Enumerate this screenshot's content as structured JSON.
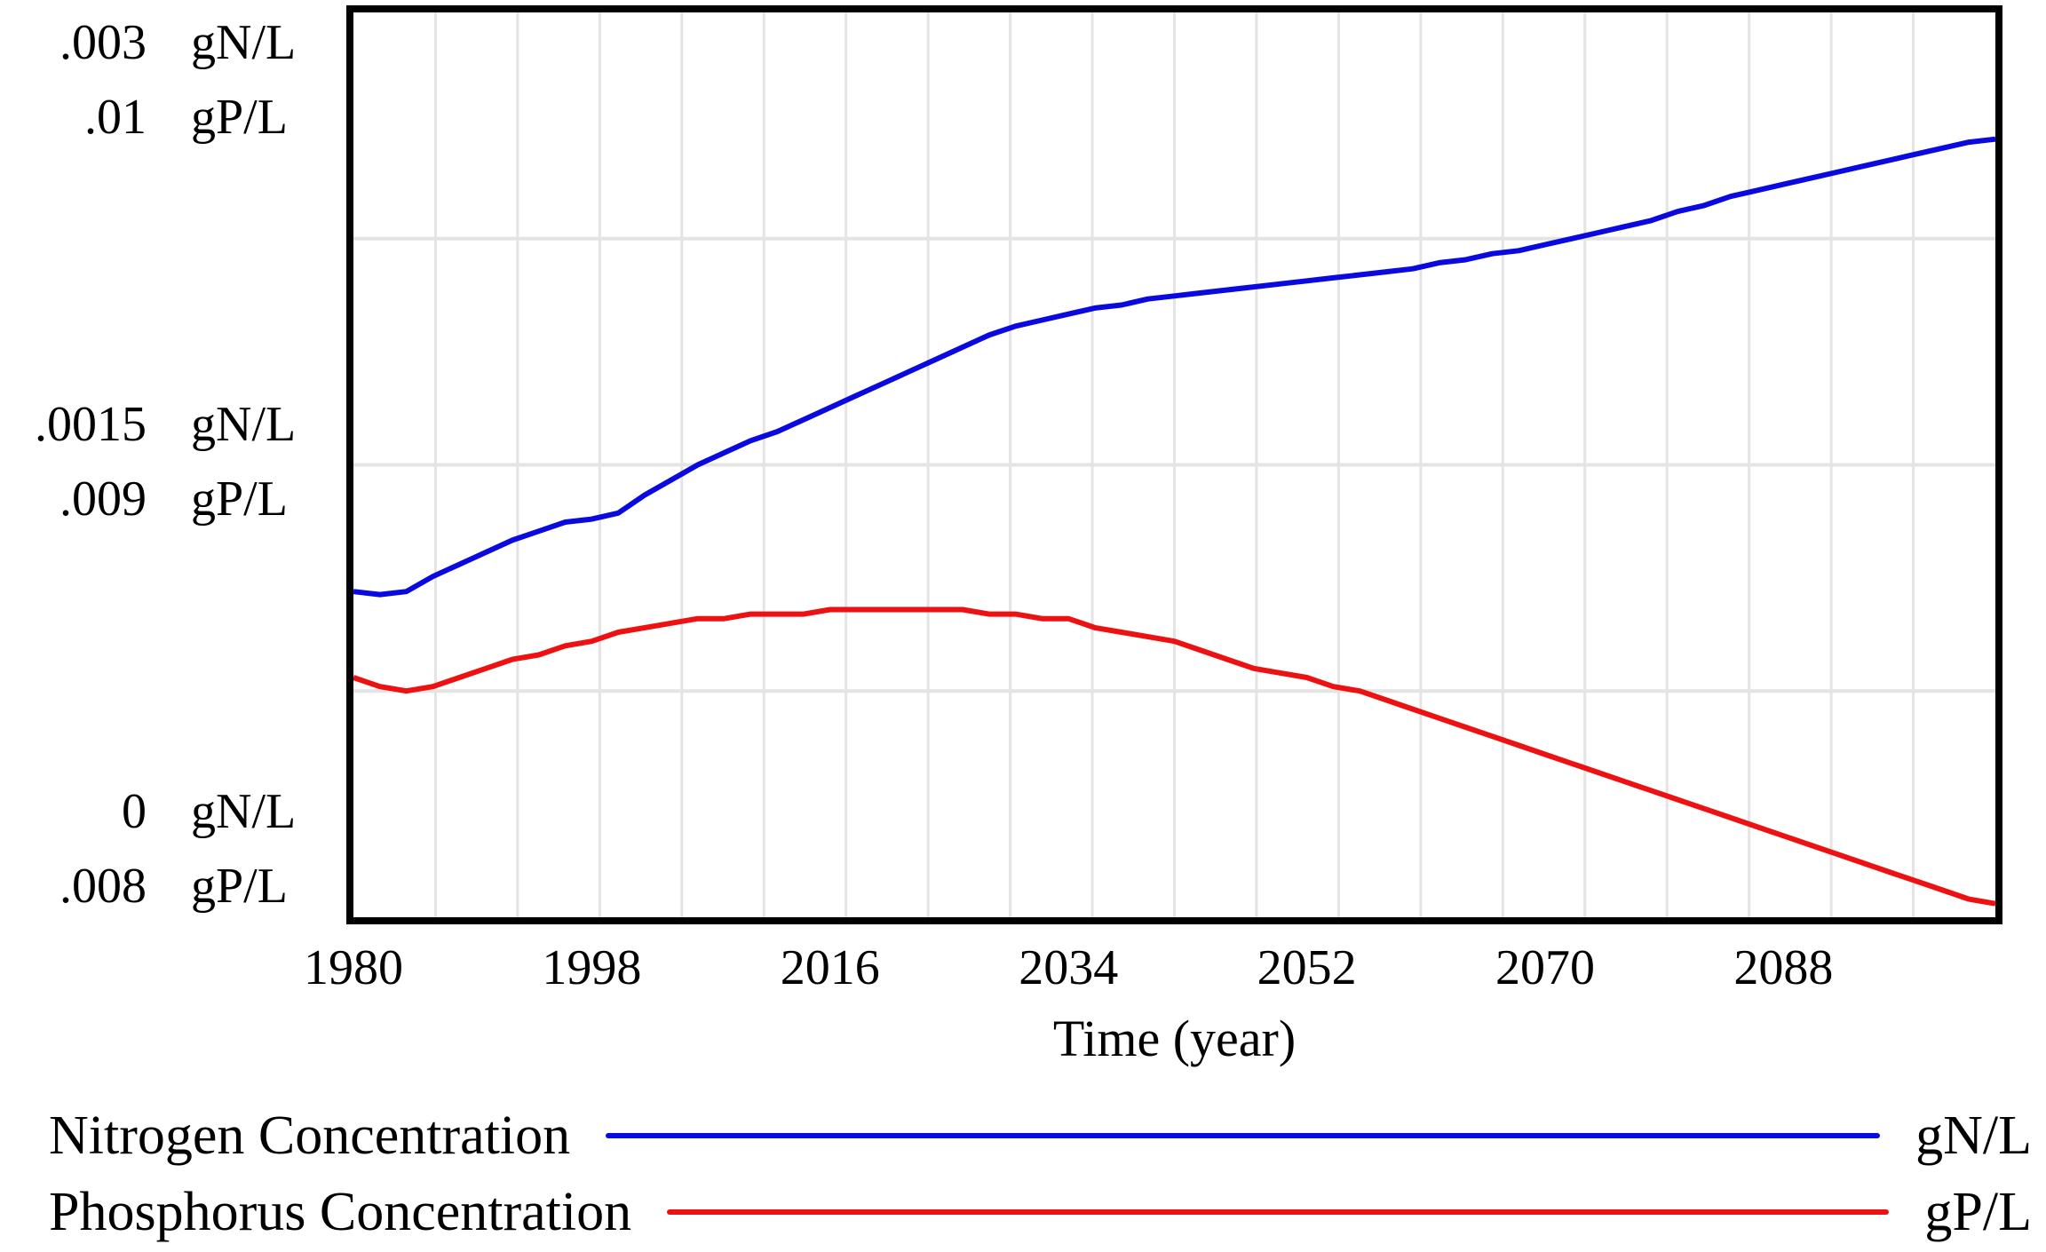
{
  "colors": {
    "nitrogen": "#0a0ae0",
    "phosphorus": "#ee1111",
    "grid": "#e4e4e4",
    "frame": "#000000",
    "background": "#ffffff",
    "text": "#000000"
  },
  "y_axis": {
    "top": [
      {
        "value": ".003",
        "unit": "gN/L"
      },
      {
        "value": ".01",
        "unit": "gP/L"
      }
    ],
    "middle": [
      {
        "value": ".0015",
        "unit": "gN/L"
      },
      {
        "value": ".009",
        "unit": "gP/L"
      }
    ],
    "bottom": [
      {
        "value": "0",
        "unit": "gN/L"
      },
      {
        "value": ".008",
        "unit": "gP/L"
      }
    ]
  },
  "x_axis": {
    "title": "Time (year)",
    "ticks": [
      "1980",
      "1998",
      "2016",
      "2034",
      "2052",
      "2070",
      "2088"
    ]
  },
  "legend": [
    {
      "label": "Nitrogen Concentration",
      "unit": "gN/L",
      "color": "#0a0ae0"
    },
    {
      "label": "Phosphorus Concentration",
      "unit": "gP/L",
      "color": "#ee1111"
    }
  ],
  "chart_data": {
    "type": "line",
    "title": "",
    "xlabel": "Time (year)",
    "x_range": [
      1980,
      2104
    ],
    "x_tick_years": [
      1980,
      1998,
      2016,
      2034,
      2052,
      2070,
      2088
    ],
    "x_divisions": 20,
    "y_divisions": 4,
    "grid": true,
    "legend_position": "bottom",
    "series": [
      {
        "name": "Nitrogen Concentration",
        "unit": "gN/L",
        "color": "#0a0ae0",
        "axis_range": [
          0,
          0.003
        ],
        "axis_ticks": [
          ".003",
          ".0015",
          "0"
        ],
        "points": [
          [
            1980,
            0.00108
          ],
          [
            1982,
            0.00107
          ],
          [
            1984,
            0.00108
          ],
          [
            1986,
            0.00113
          ],
          [
            1988,
            0.00117
          ],
          [
            1990,
            0.00121
          ],
          [
            1992,
            0.00125
          ],
          [
            1994,
            0.00128
          ],
          [
            1996,
            0.00131
          ],
          [
            1998,
            0.00132
          ],
          [
            2000,
            0.00134
          ],
          [
            2002,
            0.0014
          ],
          [
            2004,
            0.00145
          ],
          [
            2006,
            0.0015
          ],
          [
            2008,
            0.00154
          ],
          [
            2010,
            0.00158
          ],
          [
            2012,
            0.00161
          ],
          [
            2014,
            0.00165
          ],
          [
            2016,
            0.00169
          ],
          [
            2018,
            0.00173
          ],
          [
            2020,
            0.00177
          ],
          [
            2022,
            0.00181
          ],
          [
            2024,
            0.00185
          ],
          [
            2026,
            0.00189
          ],
          [
            2028,
            0.00193
          ],
          [
            2030,
            0.00196
          ],
          [
            2032,
            0.00198
          ],
          [
            2034,
            0.002
          ],
          [
            2036,
            0.00202
          ],
          [
            2038,
            0.00203
          ],
          [
            2040,
            0.00205
          ],
          [
            2042,
            0.00206
          ],
          [
            2044,
            0.00207
          ],
          [
            2046,
            0.00208
          ],
          [
            2048,
            0.00209
          ],
          [
            2050,
            0.0021
          ],
          [
            2052,
            0.00211
          ],
          [
            2054,
            0.00212
          ],
          [
            2056,
            0.00213
          ],
          [
            2058,
            0.00214
          ],
          [
            2060,
            0.00215
          ],
          [
            2062,
            0.00217
          ],
          [
            2064,
            0.00218
          ],
          [
            2066,
            0.0022
          ],
          [
            2068,
            0.00221
          ],
          [
            2070,
            0.00223
          ],
          [
            2072,
            0.00225
          ],
          [
            2074,
            0.00227
          ],
          [
            2076,
            0.00229
          ],
          [
            2078,
            0.00231
          ],
          [
            2080,
            0.00234
          ],
          [
            2082,
            0.00236
          ],
          [
            2084,
            0.00239
          ],
          [
            2086,
            0.00241
          ],
          [
            2088,
            0.00243
          ],
          [
            2090,
            0.00245
          ],
          [
            2092,
            0.00247
          ],
          [
            2094,
            0.00249
          ],
          [
            2096,
            0.00251
          ],
          [
            2098,
            0.00253
          ],
          [
            2100,
            0.00255
          ],
          [
            2102,
            0.00257
          ],
          [
            2104,
            0.00258
          ]
        ]
      },
      {
        "name": "Phosphorus Concentration",
        "unit": "gP/L",
        "color": "#ee1111",
        "axis_range": [
          0.008,
          0.01
        ],
        "axis_ticks": [
          ".01",
          ".009",
          ".008"
        ],
        "points": [
          [
            1980,
            0.00853
          ],
          [
            1982,
            0.00851
          ],
          [
            1984,
            0.0085
          ],
          [
            1986,
            0.00851
          ],
          [
            1988,
            0.00853
          ],
          [
            1990,
            0.00855
          ],
          [
            1992,
            0.00857
          ],
          [
            1994,
            0.00858
          ],
          [
            1996,
            0.0086
          ],
          [
            1998,
            0.00861
          ],
          [
            2000,
            0.00863
          ],
          [
            2002,
            0.00864
          ],
          [
            2004,
            0.00865
          ],
          [
            2006,
            0.00866
          ],
          [
            2008,
            0.00866
          ],
          [
            2010,
            0.00867
          ],
          [
            2012,
            0.00867
          ],
          [
            2014,
            0.00867
          ],
          [
            2016,
            0.00868
          ],
          [
            2018,
            0.00868
          ],
          [
            2020,
            0.00868
          ],
          [
            2022,
            0.00868
          ],
          [
            2024,
            0.00868
          ],
          [
            2026,
            0.00868
          ],
          [
            2028,
            0.00867
          ],
          [
            2030,
            0.00867
          ],
          [
            2032,
            0.00866
          ],
          [
            2034,
            0.00866
          ],
          [
            2036,
            0.00864
          ],
          [
            2038,
            0.00863
          ],
          [
            2040,
            0.00862
          ],
          [
            2042,
            0.00861
          ],
          [
            2044,
            0.00859
          ],
          [
            2046,
            0.00857
          ],
          [
            2048,
            0.00855
          ],
          [
            2050,
            0.00854
          ],
          [
            2052,
            0.00853
          ],
          [
            2054,
            0.00851
          ],
          [
            2056,
            0.0085
          ],
          [
            2058,
            0.00848
          ],
          [
            2060,
            0.00846
          ],
          [
            2062,
            0.00844
          ],
          [
            2064,
            0.00842
          ],
          [
            2066,
            0.0084
          ],
          [
            2068,
            0.00838
          ],
          [
            2070,
            0.00836
          ],
          [
            2072,
            0.00834
          ],
          [
            2074,
            0.00832
          ],
          [
            2076,
            0.0083
          ],
          [
            2078,
            0.00828
          ],
          [
            2080,
            0.00826
          ],
          [
            2082,
            0.00824
          ],
          [
            2084,
            0.00822
          ],
          [
            2086,
            0.0082
          ],
          [
            2088,
            0.00818
          ],
          [
            2090,
            0.00816
          ],
          [
            2092,
            0.00814
          ],
          [
            2094,
            0.00812
          ],
          [
            2096,
            0.0081
          ],
          [
            2098,
            0.00808
          ],
          [
            2100,
            0.00806
          ],
          [
            2102,
            0.00804
          ],
          [
            2104,
            0.00803
          ]
        ]
      }
    ]
  }
}
